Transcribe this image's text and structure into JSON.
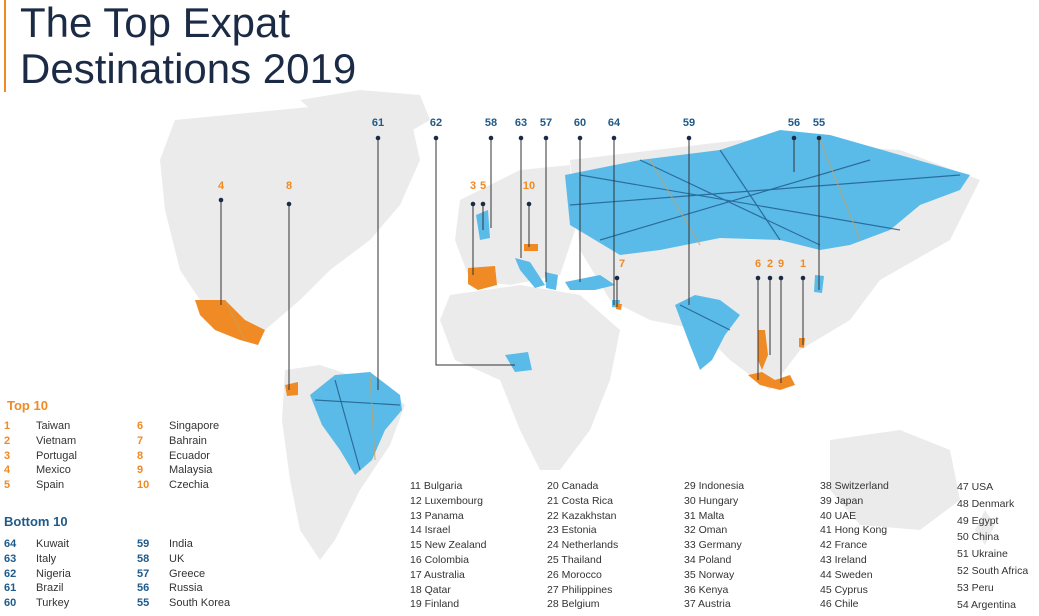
{
  "title": {
    "line1": "The Top Expat",
    "line2": "Destinations 2019"
  },
  "colors": {
    "top": "#f08a24",
    "bottom": "#5bbbe8",
    "line": "#1f5a8a",
    "land": "#ebebeb"
  },
  "map_labels": [
    {
      "rank": "61",
      "group": "bottom"
    },
    {
      "rank": "62",
      "group": "bottom"
    },
    {
      "rank": "58",
      "group": "bottom"
    },
    {
      "rank": "63",
      "group": "bottom"
    },
    {
      "rank": "57",
      "group": "bottom"
    },
    {
      "rank": "60",
      "group": "bottom"
    },
    {
      "rank": "64",
      "group": "bottom"
    },
    {
      "rank": "59",
      "group": "bottom"
    },
    {
      "rank": "56",
      "group": "bottom"
    },
    {
      "rank": "55",
      "group": "bottom"
    },
    {
      "rank": "4",
      "group": "top"
    },
    {
      "rank": "8",
      "group": "top"
    },
    {
      "rank": "3",
      "group": "top"
    },
    {
      "rank": "5",
      "group": "top"
    },
    {
      "rank": "10",
      "group": "top"
    },
    {
      "rank": "7",
      "group": "top"
    },
    {
      "rank": "6",
      "group": "top"
    },
    {
      "rank": "2",
      "group": "top"
    },
    {
      "rank": "9",
      "group": "top"
    },
    {
      "rank": "1",
      "group": "top"
    }
  ],
  "top10": {
    "heading": "Top 10",
    "col1": [
      [
        "1",
        "Taiwan"
      ],
      [
        "2",
        "Vietnam"
      ],
      [
        "3",
        "Portugal"
      ],
      [
        "4",
        "Mexico"
      ],
      [
        "5",
        "Spain"
      ]
    ],
    "col2": [
      [
        "6",
        "Singapore"
      ],
      [
        "7",
        "Bahrain"
      ],
      [
        "8",
        "Ecuador"
      ],
      [
        "9",
        "Malaysia"
      ],
      [
        "10",
        "Czechia"
      ]
    ]
  },
  "bottom10": {
    "heading": "Bottom 10",
    "col1": [
      [
        "64",
        "Kuwait"
      ],
      [
        "63",
        "Italy"
      ],
      [
        "62",
        "Nigeria"
      ],
      [
        "61",
        "Brazil"
      ],
      [
        "60",
        "Turkey"
      ]
    ],
    "col2": [
      [
        "59",
        "India"
      ],
      [
        "58",
        "UK"
      ],
      [
        "57",
        "Greece"
      ],
      [
        "56",
        "Russia"
      ],
      [
        "55",
        "South Korea"
      ]
    ]
  },
  "others": [
    [
      "11 Bulgaria",
      "12 Luxembourg",
      "13 Panama",
      "14 Israel",
      "15 New Zealand",
      "16 Colombia",
      "17 Australia",
      "18 Qatar",
      "19 Finland"
    ],
    [
      "20 Canada",
      "21 Costa Rica",
      "22 Kazakhstan",
      "23 Estonia",
      "24 Netherlands",
      "25 Thailand",
      "26 Morocco",
      "27 Philippines",
      "28 Belgium"
    ],
    [
      "29 Indonesia",
      "30 Hungary",
      "31 Malta",
      "32 Oman",
      "33 Germany",
      "34 Poland",
      "35 Norway",
      "36 Kenya",
      "37 Austria"
    ],
    [
      "38 Switzerland",
      "39 Japan",
      "40 UAE",
      "41 Hong Kong",
      "42 France",
      "43 Ireland",
      "44 Sweden",
      "45 Cyprus",
      "46 Chile"
    ],
    [
      "47 USA",
      "48 Denmark",
      "49 Egypt",
      "50 China",
      "51 Ukraine",
      "52 South Africa",
      "53 Peru",
      "54 Argentina"
    ]
  ]
}
